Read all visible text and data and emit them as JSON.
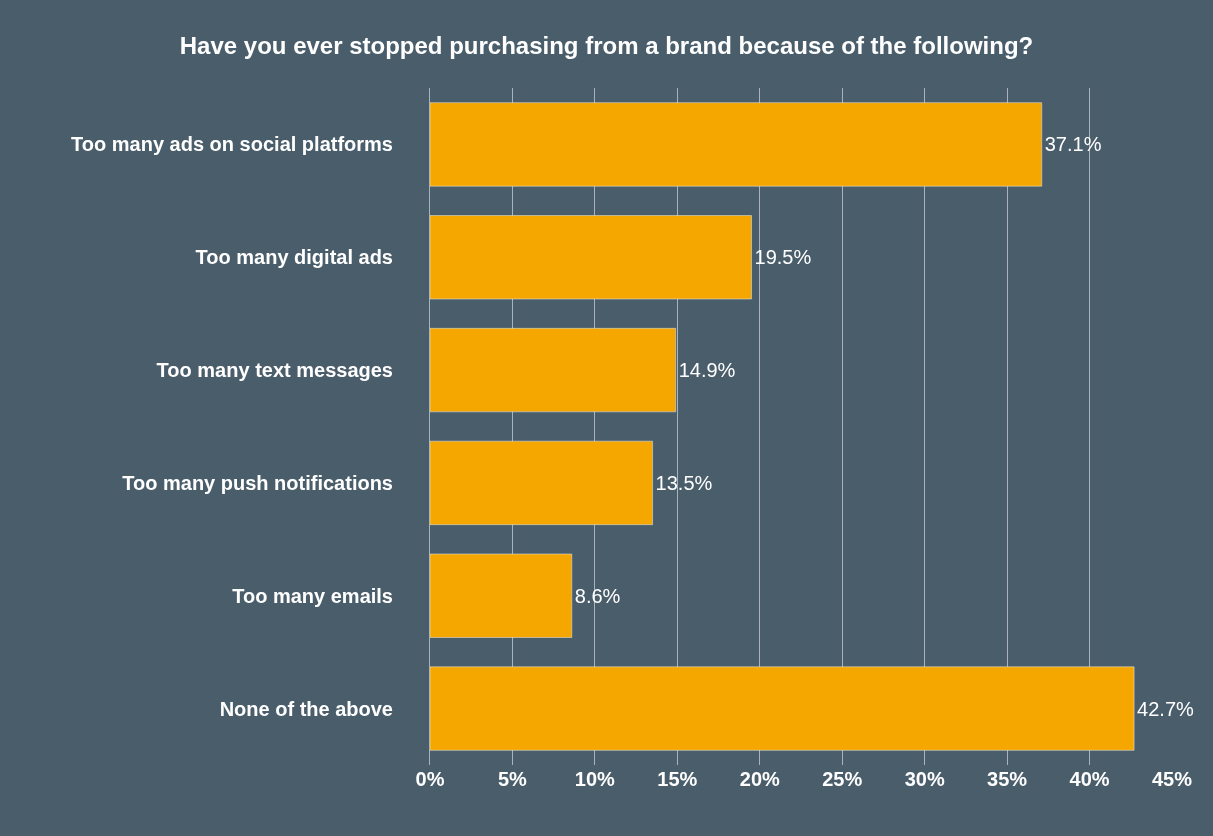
{
  "chart_data": {
    "type": "bar",
    "orientation": "horizontal",
    "title": "Have you ever stopped purchasing from a brand because of the following?",
    "categories": [
      "Too many ads on social platforms",
      "Too many digital ads",
      "Too many text messages",
      "Too many push notifications",
      "Too many emails",
      "None of the above"
    ],
    "values": [
      37.1,
      19.5,
      14.9,
      13.5,
      8.6,
      42.7
    ],
    "value_labels": [
      "37.1%",
      "19.5%",
      "14.9%",
      "13.5%",
      "8.6%",
      "42.7%"
    ],
    "color": "#f5a700",
    "xlim": [
      0,
      45
    ],
    "xticks": [
      {
        "value": 0,
        "label": "0%"
      },
      {
        "value": 5,
        "label": "5%"
      },
      {
        "value": 10,
        "label": "10%"
      },
      {
        "value": 15,
        "label": "15%"
      },
      {
        "value": 20,
        "label": "20%"
      },
      {
        "value": 25,
        "label": "25%"
      },
      {
        "value": 30,
        "label": "30%"
      },
      {
        "value": 35,
        "label": "35%"
      },
      {
        "value": 40,
        "label": "40%"
      },
      {
        "value": 45,
        "label": "45%"
      }
    ],
    "grid": "x",
    "legend": false
  }
}
